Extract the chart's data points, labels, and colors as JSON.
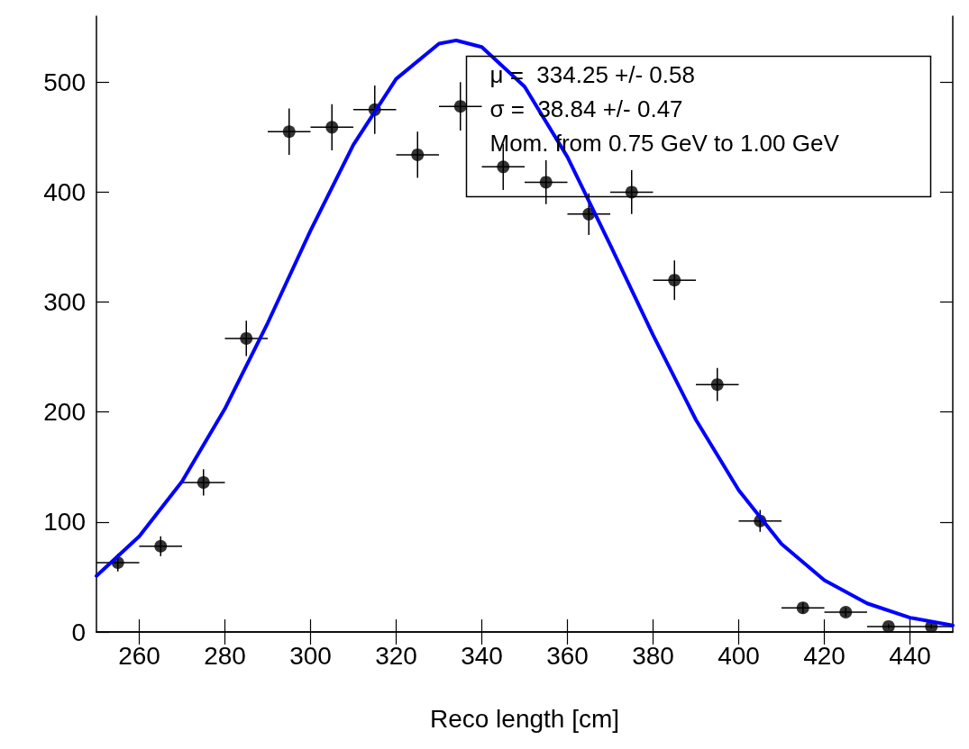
{
  "chart_data": {
    "type": "scatter",
    "xlabel": "Reco length [cm]",
    "xlim": [
      250,
      450
    ],
    "xticks": [
      260,
      280,
      300,
      320,
      340,
      360,
      380,
      400,
      420,
      440
    ],
    "ylim": [
      0,
      560
    ],
    "yticks": [
      0,
      100,
      200,
      300,
      400,
      500
    ],
    "grid": false,
    "marker": "circle",
    "annotations": [
      "μ =  334.25 +/- 0.58",
      "σ =  38.84 +/- 0.47",
      "Mom. from 0.75 GeV to 1.00 GeV"
    ],
    "series": [
      {
        "color": "#000000",
        "x": [
          255,
          265,
          275,
          285,
          295,
          305,
          315,
          325,
          335,
          345,
          355,
          365,
          375,
          385,
          395,
          405,
          415,
          425,
          435,
          445
        ],
        "values": [
          63,
          78,
          136,
          267,
          455,
          459,
          475,
          434,
          478,
          423,
          409,
          380,
          400,
          320,
          225,
          101,
          22,
          18,
          5,
          5
        ],
        "errors": [
          8,
          9,
          12,
          16,
          21,
          21,
          22,
          21,
          22,
          21,
          20,
          19,
          20,
          18,
          15,
          10,
          5,
          4,
          2,
          2
        ],
        "xerrors": [
          5,
          5,
          5,
          5,
          5,
          5,
          5,
          5,
          5,
          5,
          5,
          5,
          5,
          5,
          5,
          5,
          5,
          5,
          5,
          5
        ]
      },
      {
        "type": "line",
        "color": "#0000ff",
        "marker": "none",
        "line_style": "solid",
        "x": [
          250,
          260,
          270,
          280,
          290,
          300,
          310,
          320,
          330,
          334,
          340,
          350,
          360,
          370,
          380,
          390,
          400,
          410,
          420,
          430,
          440,
          450
        ],
        "values": [
          51,
          87,
          137,
          203,
          281,
          365,
          443,
          503,
          535,
          538,
          532,
          496,
          432,
          352,
          270,
          193,
          129,
          80,
          47,
          26,
          13,
          6
        ]
      }
    ]
  }
}
